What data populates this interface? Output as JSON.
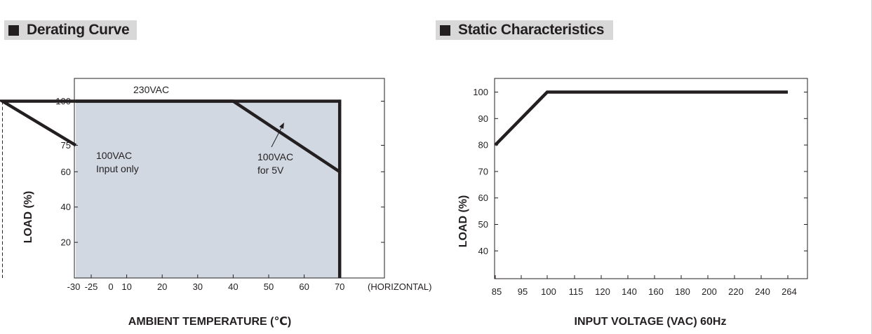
{
  "sections": {
    "left_title": "Derating Curve",
    "right_title": "Static Characteristics"
  },
  "chart_data": [
    {
      "type": "line",
      "title": "Derating Curve",
      "xlabel": "AMBIENT TEMPERATURE (℃)",
      "ylabel": "LOAD (%)",
      "x_ticks": [
        "-30",
        "-25",
        "0",
        "10",
        "20",
        "30",
        "40",
        "50",
        "60",
        "70"
      ],
      "x_tick_suffix": "(HORIZONTAL)",
      "y_ticks": [
        20,
        40,
        60,
        75,
        100
      ],
      "xlim": [
        -30,
        78
      ],
      "ylim": [
        0,
        106
      ],
      "grid": false,
      "series": [
        {
          "name": "230VAC",
          "x": [
            -30,
            70,
            70
          ],
          "y": [
            100,
            100,
            60
          ],
          "shaded": true
        },
        {
          "name": "100VAC for 5V",
          "x": [
            -30,
            -25,
            40,
            70,
            70
          ],
          "y": [
            75,
            100,
            100,
            60,
            0
          ]
        }
      ],
      "annotations": {
        "label_230": "230VAC",
        "input_only_line1": "100VAC",
        "input_only_line2": "Input only",
        "for5v_line1": "100VAC",
        "for5v_line2": "for 5V"
      },
      "dashed_vertical_x": -25
    },
    {
      "type": "line",
      "title": "Static Characteristics",
      "xlabel": "INPUT VOLTAGE (VAC) 60Hz",
      "ylabel": "LOAD (%)",
      "x_ticks": [
        "85",
        "95",
        "100",
        "115",
        "120",
        "140",
        "160",
        "180",
        "200",
        "220",
        "240",
        "264"
      ],
      "y_ticks": [
        40,
        50,
        60,
        70,
        80,
        90,
        100
      ],
      "ylim": [
        33,
        105
      ],
      "grid": false,
      "series": [
        {
          "x": [
            "85",
            "100",
            "264"
          ],
          "y": [
            80,
            100,
            100
          ]
        }
      ]
    }
  ],
  "colors": {
    "shade": "#d1d8e2",
    "line": "#231f20",
    "header_bg": "#d8d8d8"
  }
}
